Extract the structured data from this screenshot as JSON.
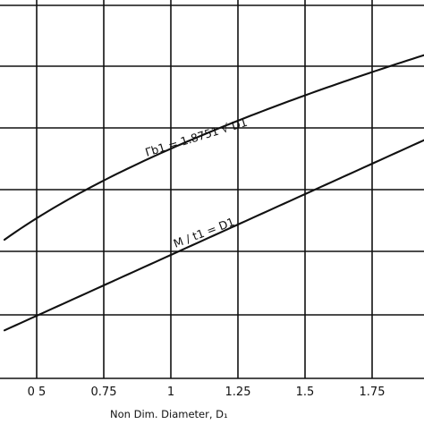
{
  "chart_data": {
    "type": "line",
    "xlabel": "Non Dim. Diameter, D₁",
    "ylabel": "",
    "x_ticks": [
      "0 5",
      "0.75",
      "1",
      "1.25",
      "1.5",
      "1.75"
    ],
    "x_tick_values": [
      0.5,
      0.75,
      1.0,
      1.25,
      1.5,
      1.75
    ],
    "xlim": [
      0.38,
      1.98
    ],
    "grid": true,
    "series": [
      {
        "name": "Γb1 = 1.8751 √ D1",
        "x": [
          0.38,
          0.5,
          0.75,
          1.0,
          1.25,
          1.5,
          1.75,
          1.98
        ],
        "y": [
          1.1559,
          1.3259,
          1.6238,
          1.8751,
          2.0965,
          2.2966,
          2.4806,
          2.6384
        ]
      },
      {
        "name": "M / t1 = D1",
        "x": [
          0.38,
          0.5,
          0.75,
          1.0,
          1.25,
          1.5,
          1.75,
          1.98
        ],
        "y": [
          0.38,
          0.5,
          0.75,
          1.0,
          1.25,
          1.5,
          1.75,
          1.98
        ]
      }
    ]
  },
  "labels": {
    "x_axis_title": "Non Dim. Diameter, D₁",
    "curve_sqrt": "Γb1 = 1.8751 √ D1",
    "curve_linear": "M / t1 = D1"
  }
}
